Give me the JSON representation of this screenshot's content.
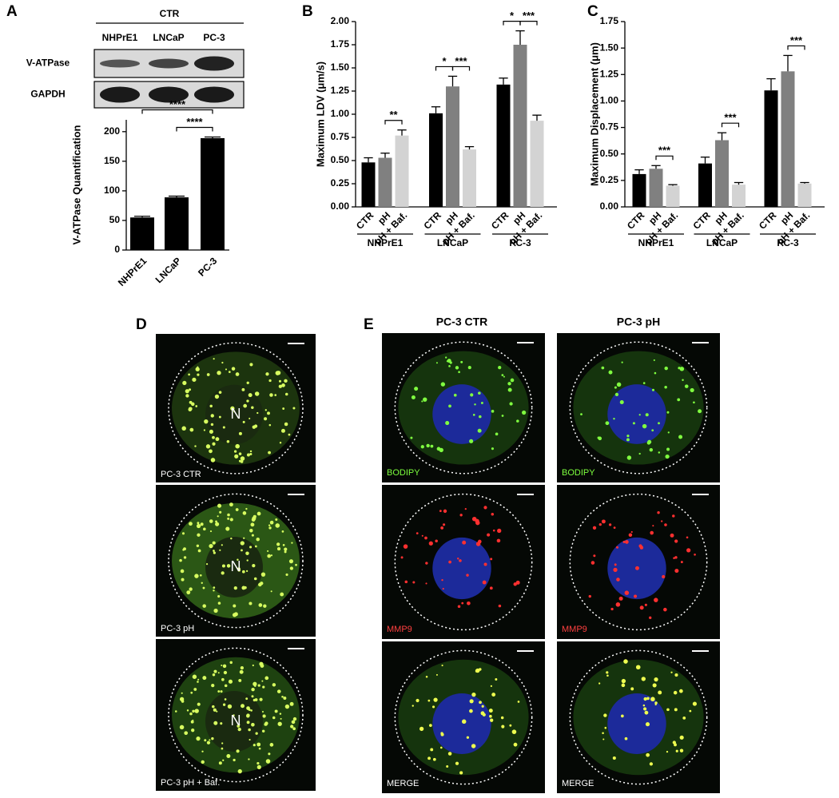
{
  "panel_labels": [
    "A",
    "B",
    "C",
    "D",
    "E"
  ],
  "blot": {
    "condition": "CTR",
    "columns": [
      "NHPrE1",
      "LNCaP",
      "PC-3"
    ],
    "rows": [
      "V-ATPase",
      "GAPDH"
    ]
  },
  "chart_data": [
    {
      "type": "bar",
      "ylabel": "V-ATPase Quantification",
      "categories": [
        "NHPrE1",
        "LNCaP",
        "PC-3"
      ],
      "values": [
        55,
        89,
        189
      ],
      "errors": [
        2,
        2,
        2
      ],
      "color": "#000000",
      "ylim": [
        0,
        220
      ],
      "yticks": [
        0,
        50,
        100,
        150,
        200
      ],
      "annotations": [
        {
          "label": "****",
          "between": [
            "NHPrE1",
            "PC-3"
          ]
        },
        {
          "label": "****",
          "between": [
            "LNCaP",
            "PC-3"
          ]
        }
      ]
    },
    {
      "type": "grouped_bar",
      "ylabel": "Maximum LDV (μm/s)",
      "categories": [
        "NHPrE1",
        "LNCaP",
        "PC-3"
      ],
      "series": [
        {
          "name": "CTR",
          "color": "#000000",
          "values": [
            0.48,
            1.01,
            1.32
          ],
          "errors": [
            0.05,
            0.07,
            0.07
          ]
        },
        {
          "name": "pH",
          "color": "#808080",
          "values": [
            0.53,
            1.3,
            1.75
          ],
          "errors": [
            0.05,
            0.11,
            0.15
          ]
        },
        {
          "name": "pH + Baf.",
          "color": "#d3d3d3",
          "values": [
            0.77,
            0.62,
            0.93
          ],
          "errors": [
            0.06,
            0.03,
            0.06
          ]
        }
      ],
      "ylim": [
        0,
        2
      ],
      "yticks": [
        {
          "value": 0,
          "label": "0.00"
        },
        {
          "value": 0.25,
          "label": "0.25"
        },
        {
          "value": 0.5,
          "label": "0.50"
        },
        {
          "value": 0.75,
          "label": "0.75"
        },
        {
          "value": 1,
          "label": "1.00"
        },
        {
          "value": 1.25,
          "label": "1.25"
        },
        {
          "value": 1.5,
          "label": "1.50"
        },
        {
          "value": 1.75,
          "label": "1.75"
        },
        {
          "value": 2,
          "label": "2.00"
        }
      ],
      "annotations": [
        {
          "category": "NHPrE1",
          "label": "**",
          "between": [
            "pH",
            "pH + Baf."
          ]
        },
        {
          "category": "LNCaP",
          "label": "*",
          "between": [
            "CTR",
            "pH"
          ]
        },
        {
          "category": "LNCaP",
          "label": "***",
          "between": [
            "pH",
            "pH + Baf."
          ]
        },
        {
          "category": "PC-3",
          "label": "*",
          "between": [
            "CTR",
            "pH"
          ]
        },
        {
          "category": "PC-3",
          "label": "***",
          "between": [
            "pH",
            "pH + Baf."
          ]
        }
      ]
    },
    {
      "type": "grouped_bar",
      "ylabel": "Maximum Displacement (μm)",
      "categories": [
        "NHPrE1",
        "LNCaP",
        "PC-3"
      ],
      "series": [
        {
          "name": "CTR",
          "color": "#000000",
          "values": [
            0.31,
            0.41,
            1.1
          ],
          "errors": [
            0.04,
            0.06,
            0.11
          ]
        },
        {
          "name": "pH",
          "color": "#808080",
          "values": [
            0.36,
            0.63,
            1.28
          ],
          "errors": [
            0.03,
            0.07,
            0.15
          ]
        },
        {
          "name": "pH + Baf.",
          "color": "#d3d3d3",
          "values": [
            0.2,
            0.21,
            0.22
          ],
          "errors": [
            0.01,
            0.02,
            0.01
          ]
        }
      ],
      "ylim": [
        0,
        1.75
      ],
      "yticks": [
        {
          "value": 0,
          "label": "0.00"
        },
        {
          "value": 0.25,
          "label": "0.25"
        },
        {
          "value": 0.5,
          "label": "0.50"
        },
        {
          "value": 0.75,
          "label": "0.75"
        },
        {
          "value": 1,
          "label": "1.00"
        },
        {
          "value": 1.25,
          "label": "1.25"
        },
        {
          "value": 1.5,
          "label": "1.50"
        },
        {
          "value": 1.75,
          "label": "1.75"
        }
      ],
      "annotations": [
        {
          "category": "NHPrE1",
          "label": "***",
          "between": [
            "pH",
            "pH + Baf."
          ]
        },
        {
          "category": "LNCaP",
          "label": "***",
          "between": [
            "pH",
            "pH + Baf."
          ]
        },
        {
          "category": "PC-3",
          "label": "***",
          "between": [
            "pH",
            "pH + Baf."
          ]
        }
      ]
    }
  ],
  "panel_d": {
    "images": [
      {
        "nucleus": "N",
        "caption": "PC-3 CTR"
      },
      {
        "nucleus": "N",
        "caption": "PC-3 pH"
      },
      {
        "nucleus": "N",
        "caption": "PC-3 pH + Baf."
      }
    ]
  },
  "panel_e": {
    "columns": [
      "PC-3 CTR",
      "PC-3 pH"
    ],
    "rows": [
      "BODIPY",
      "MMP9",
      "MERGE"
    ]
  }
}
